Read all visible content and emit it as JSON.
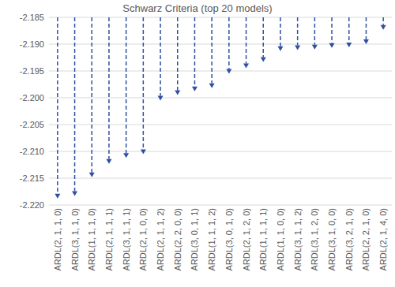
{
  "chart_data": {
    "type": "bar",
    "title": "Schwarz Criteria (top 20 models)",
    "categories": [
      "ARDL(2, 1, 1, 0)",
      "ARDL(3, 1, 1, 0)",
      "ARDL(1, 1, 1, 0)",
      "ARDL(2, 1, 1, 1)",
      "ARDL(3, 1, 1, 1)",
      "ARDL(2, 1, 0, 0)",
      "ARDL(2, 1, 1, 2)",
      "ARDL(2, 2, 0, 0)",
      "ARDL(3, 0, 1, 1)",
      "ARDL(1, 1, 1, 2)",
      "ARDL(3, 0, 1, 0)",
      "ARDL(2, 1, 2, 0)",
      "ARDL(1, 1, 1, 1)",
      "ARDL(1, 1, 0, 0)",
      "ARDL(3, 1, 1, 2)",
      "ARDL(3, 1, 2, 0)",
      "ARDL(3, 1, 0, 0)",
      "ARDL(3, 2, 1, 0)",
      "ARDL(2, 2, 1, 0)",
      "ARDL(2, 1, 4, 0)"
    ],
    "values": [
      -2.2188,
      -2.2183,
      -2.2148,
      -2.2123,
      -2.2112,
      -2.2105,
      -2.2005,
      -2.1995,
      -2.1988,
      -2.1982,
      -2.1955,
      -2.1945,
      -2.1933,
      -2.1913,
      -2.1911,
      -2.191,
      -2.1907,
      -2.1906,
      -2.19,
      -2.1873
    ],
    "color": "#2e4fa3",
    "line_style": "dashed",
    "marker": "arrow",
    "ylim": [
      -2.22,
      -2.185
    ],
    "yticks": [
      {
        "value": -2.22,
        "label": "-2.220"
      },
      -2.215,
      {
        "value": -2.21,
        "label": "-2.210"
      },
      -2.205,
      {
        "value": -2.2,
        "label": "-2.200"
      },
      -2.195,
      {
        "value": -2.19,
        "label": "-2.190"
      },
      -2.185
    ],
    "grid": true
  }
}
